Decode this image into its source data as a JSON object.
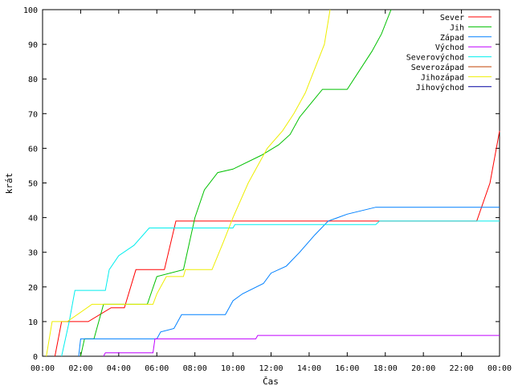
{
  "chart_data": {
    "type": "line",
    "title": "",
    "xlabel": "Čas",
    "ylabel": "krát",
    "xlim": [
      0,
      24
    ],
    "ylim": [
      0,
      100
    ],
    "x_unit": "hours",
    "x_ticks": [
      {
        "value": 0,
        "label": "00:00"
      },
      {
        "value": 2,
        "label": "02:00"
      },
      {
        "value": 4,
        "label": "04:00"
      },
      {
        "value": 6,
        "label": "06:00"
      },
      {
        "value": 8,
        "label": "08:00"
      },
      {
        "value": 10,
        "label": "10:00"
      },
      {
        "value": 12,
        "label": "12:00"
      },
      {
        "value": 14,
        "label": "14:00"
      },
      {
        "value": 16,
        "label": "16:00"
      },
      {
        "value": 18,
        "label": "18:00"
      },
      {
        "value": 20,
        "label": "20:00"
      },
      {
        "value": 22,
        "label": "22:00"
      },
      {
        "value": 24,
        "label": "00:00"
      }
    ],
    "y_ticks": [
      {
        "value": 0,
        "label": "0"
      },
      {
        "value": 10,
        "label": "10"
      },
      {
        "value": 20,
        "label": "20"
      },
      {
        "value": 30,
        "label": "30"
      },
      {
        "value": 40,
        "label": "40"
      },
      {
        "value": 50,
        "label": "50"
      },
      {
        "value": 60,
        "label": "60"
      },
      {
        "value": 70,
        "label": "70"
      },
      {
        "value": 80,
        "label": "80"
      },
      {
        "value": 90,
        "label": "90"
      },
      {
        "value": 100,
        "label": "100"
      }
    ],
    "grid": false,
    "legend_position": "top-right",
    "series": [
      {
        "name": "Sever",
        "color": "#ff0000",
        "points": [
          [
            0.65,
            0
          ],
          [
            1.0,
            10
          ],
          [
            2.4,
            10
          ],
          [
            3.6,
            14
          ],
          [
            4.3,
            14
          ],
          [
            4.9,
            25
          ],
          [
            6.4,
            25
          ],
          [
            7.0,
            39
          ],
          [
            22.8,
            39
          ],
          [
            23.5,
            50
          ],
          [
            24.0,
            65
          ]
        ]
      },
      {
        "name": "Jih",
        "color": "#00c000",
        "points": [
          [
            2.0,
            0
          ],
          [
            2.2,
            5
          ],
          [
            2.7,
            5
          ],
          [
            3.2,
            15
          ],
          [
            5.5,
            15
          ],
          [
            6.0,
            23
          ],
          [
            7.4,
            25
          ],
          [
            8.0,
            40
          ],
          [
            8.5,
            48
          ],
          [
            9.2,
            53
          ],
          [
            10.0,
            54
          ],
          [
            11.5,
            58
          ],
          [
            12.4,
            61
          ],
          [
            13.0,
            64
          ],
          [
            13.5,
            69
          ],
          [
            14.7,
            77
          ],
          [
            16.0,
            77
          ],
          [
            17.3,
            88
          ],
          [
            17.8,
            93
          ],
          [
            18.3,
            100
          ]
        ]
      },
      {
        "name": "Západ",
        "color": "#0080ff",
        "points": [
          [
            1.9,
            0
          ],
          [
            2.0,
            5
          ],
          [
            6.0,
            5
          ],
          [
            6.2,
            7
          ],
          [
            6.9,
            8
          ],
          [
            7.3,
            12
          ],
          [
            9.6,
            12
          ],
          [
            10.0,
            16
          ],
          [
            10.5,
            18
          ],
          [
            11.6,
            21
          ],
          [
            12.0,
            24
          ],
          [
            12.8,
            26
          ],
          [
            13.5,
            30
          ],
          [
            14.3,
            35
          ],
          [
            15.0,
            39
          ],
          [
            15.5,
            40
          ],
          [
            16.0,
            41
          ],
          [
            17.5,
            43
          ],
          [
            24.0,
            43
          ]
        ]
      },
      {
        "name": "Východ",
        "color": "#c000ff",
        "points": [
          [
            3.2,
            0
          ],
          [
            3.3,
            1
          ],
          [
            5.8,
            1
          ],
          [
            5.9,
            5
          ],
          [
            11.2,
            5
          ],
          [
            11.3,
            6
          ],
          [
            24.0,
            6
          ]
        ]
      },
      {
        "name": "Severovýchod",
        "color": "#00eeee",
        "points": [
          [
            1.0,
            0
          ],
          [
            1.4,
            10
          ],
          [
            1.7,
            19
          ],
          [
            3.3,
            19
          ],
          [
            3.5,
            25
          ],
          [
            4.0,
            29
          ],
          [
            4.8,
            32
          ],
          [
            5.6,
            37
          ],
          [
            10.0,
            37
          ],
          [
            10.1,
            38
          ],
          [
            17.5,
            38
          ],
          [
            17.7,
            39
          ],
          [
            24.0,
            39
          ]
        ]
      },
      {
        "name": "Severozápad",
        "color": "#c04000",
        "points": []
      },
      {
        "name": "Jihozápad",
        "color": "#eeee00",
        "points": [
          [
            0.2,
            0
          ],
          [
            0.5,
            10
          ],
          [
            1.3,
            10
          ],
          [
            2.6,
            15
          ],
          [
            5.8,
            15
          ],
          [
            6.0,
            18
          ],
          [
            6.5,
            23
          ],
          [
            7.4,
            23
          ],
          [
            7.5,
            25
          ],
          [
            8.9,
            25
          ],
          [
            9.5,
            33
          ],
          [
            10.0,
            40
          ],
          [
            10.8,
            50
          ],
          [
            11.8,
            60
          ],
          [
            12.6,
            65
          ],
          [
            13.2,
            70
          ],
          [
            13.8,
            76
          ],
          [
            14.3,
            83
          ],
          [
            14.8,
            90
          ],
          [
            15.1,
            100
          ]
        ]
      },
      {
        "name": "Jihovýchod",
        "color": "#0000a0",
        "points": []
      }
    ]
  }
}
